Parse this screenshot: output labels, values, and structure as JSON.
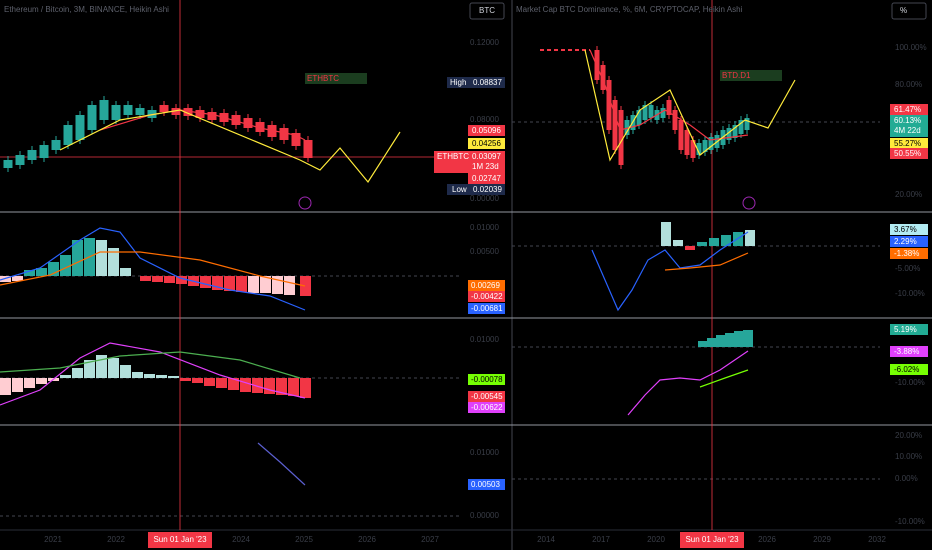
{
  "left": {
    "header": "Ethereum / Bitcoin, 3M, BINANCE, Heikin Ashi",
    "currency_button": "BTC",
    "symbol_tag": "ETHBTC",
    "price_axis": [
      "0.12000",
      "0.08000",
      "0.00000"
    ],
    "high_label": "High",
    "high_value": "0.08837",
    "tags": [
      "0.05096",
      "0.04256",
      "0.03097",
      "1M 23d",
      "0.02747"
    ],
    "last_symbol": "ETHBTC",
    "low_label": "Low",
    "low_value": "0.02039",
    "pane2_axis": [
      "0.01000",
      "0.00500"
    ],
    "pane2_tags": [
      "0.00269",
      "-0.00422",
      "-0.00681"
    ],
    "pane3_axis": [
      "0.01000"
    ],
    "pane3_tags": [
      "-0.00078",
      "-0.00545",
      "-0.00622"
    ],
    "pane4_axis": [
      "0.01000",
      "0.00000"
    ],
    "pane4_tags": [
      "0.00503"
    ],
    "x_labels": [
      "2021",
      "2022",
      "2024",
      "2025",
      "2026",
      "2027"
    ],
    "crosshair_date": "Sun 01 Jan '23"
  },
  "right": {
    "header": "Market Cap BTC Dominance, %, 6M, CRYPTOCAP, Heikin Ashi",
    "currency_button": "%",
    "symbol_tag": "BTD.D1",
    "price_axis": [
      "100.00%",
      "80.00%",
      "20.00%"
    ],
    "tags": [
      "61.47%",
      "60.13%",
      "4M 22d",
      "55.27%",
      "50.55%"
    ],
    "pane2_axis": [
      "-5.00%",
      "-10.00%"
    ],
    "pane2_tags": [
      "3.67%",
      "2.29%",
      "-1.38%"
    ],
    "pane3_axis": [
      "-10.00%"
    ],
    "pane3_tags": [
      "5.19%",
      "-3.88%",
      "-6.02%"
    ],
    "pane4_axis": [
      "20.00%",
      "10.00%",
      "0.00%",
      "-10.00%"
    ],
    "x_labels": [
      "2014",
      "2017",
      "2020",
      "2026",
      "2029",
      "2032"
    ],
    "crosshair_date": "Sun 01 Jan '23"
  }
}
